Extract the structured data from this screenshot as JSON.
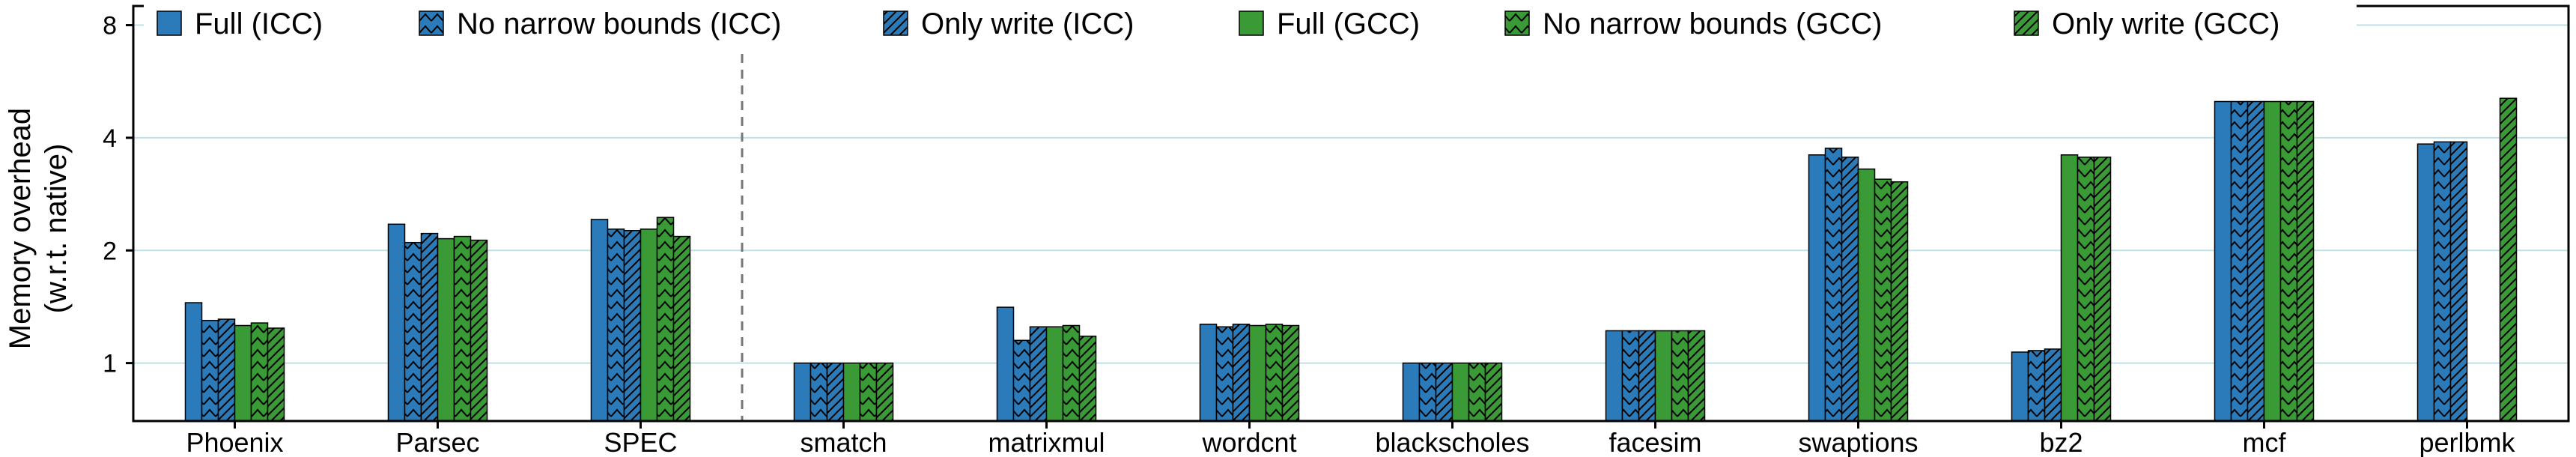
{
  "chart_data": {
    "type": "bar",
    "ylabel_line1": "Memory overhead",
    "ylabel_line2": "(w.r.t. native)",
    "yscale": "log2",
    "ylim": [
      0.7,
      9
    ],
    "yticks": [
      1,
      2,
      4,
      8
    ],
    "ytick_labels": [
      "1",
      "2",
      "4",
      "8"
    ],
    "grid": "horizontal",
    "legend_position": "top",
    "categories": [
      "Phoenix",
      "Parsec",
      "SPEC",
      "smatch",
      "matrixmul",
      "wordcnt",
      "blackscholes",
      "facesim",
      "swaptions",
      "bz2",
      "mcf",
      "perlbmk"
    ],
    "separator_after": "SPEC",
    "series": [
      {
        "name": "Full (ICC)",
        "color": "#2b7bba",
        "pattern": "none",
        "values": [
          1.45,
          2.35,
          2.42,
          1.0,
          1.41,
          1.27,
          1.0,
          1.22,
          3.6,
          1.07,
          5.0,
          3.85
        ]
      },
      {
        "name": "No narrow bounds (ICC)",
        "color": "#2b7bba",
        "pattern": "chevron",
        "values": [
          1.3,
          2.1,
          2.28,
          1.0,
          1.15,
          1.25,
          1.0,
          1.22,
          3.75,
          1.08,
          5.0,
          3.9
        ]
      },
      {
        "name": "Only write (ICC)",
        "color": "#2b7bba",
        "pattern": "diagonal",
        "values": [
          1.31,
          2.22,
          2.26,
          1.0,
          1.25,
          1.27,
          1.0,
          1.22,
          3.55,
          1.09,
          5.0,
          3.9
        ]
      },
      {
        "name": "Full (GCC)",
        "color": "#3a9a35",
        "pattern": "none",
        "values": [
          1.26,
          2.15,
          2.28,
          1.0,
          1.25,
          1.26,
          1.0,
          1.22,
          3.3,
          3.6,
          5.0,
          null
        ]
      },
      {
        "name": "No narrow bounds (GCC)",
        "color": "#3a9a35",
        "pattern": "chevron",
        "values": [
          1.28,
          2.18,
          2.45,
          1.0,
          1.26,
          1.27,
          1.0,
          1.22,
          3.1,
          3.55,
          5.0,
          null
        ]
      },
      {
        "name": "Only write (GCC)",
        "color": "#3a9a35",
        "pattern": "diagonal",
        "values": [
          1.24,
          2.13,
          2.18,
          1.0,
          1.18,
          1.26,
          1.0,
          1.22,
          3.05,
          3.55,
          5.0,
          5.1
        ]
      }
    ]
  }
}
